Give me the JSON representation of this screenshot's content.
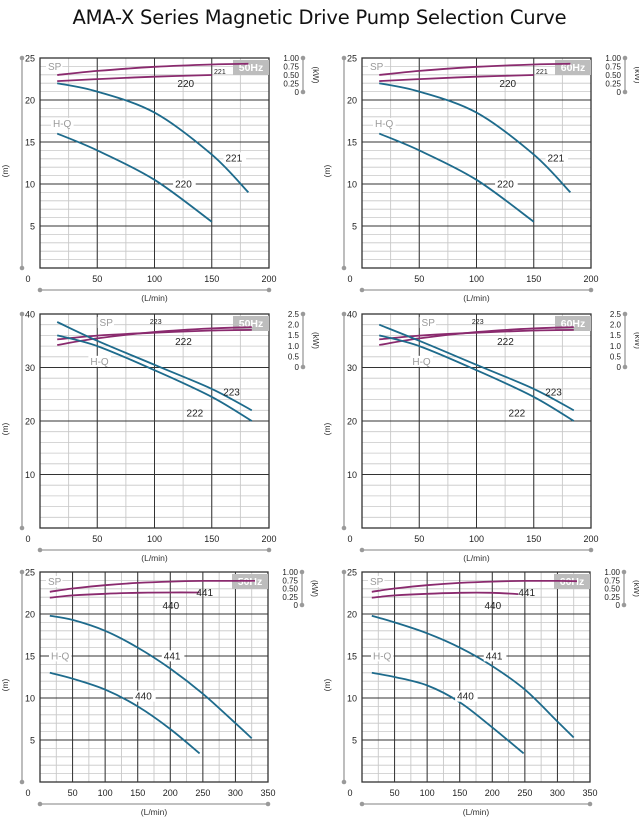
{
  "title": "AMA-X Series Magnetic Drive Pump Selection Curve",
  "colors": {
    "hq_curve": "#1e6b8c",
    "sp_curve": "#8a2a6e",
    "grid_major": "#333333",
    "grid_minor": "#c8c8c8",
    "axis_line": "#9a9a9a",
    "badge_bg": "#bdbdbd",
    "badge_text": "#ffffff",
    "label_gray": "#9a9a9a"
  },
  "chart_data": [
    {
      "type": "line",
      "id": "ama-220-221-50hz",
      "frequency_badge": "50Hz",
      "xlabel": "(L/min)",
      "ylabel": "(m)",
      "y2label": "(kW)",
      "xlim": [
        0,
        200
      ],
      "ylim": [
        0,
        25
      ],
      "y2lim": [
        0,
        1.0
      ],
      "x_ticks": [
        "0",
        "50",
        "100",
        "150",
        "200"
      ],
      "y_ticks": [
        "5",
        "10",
        "15",
        "20",
        "25"
      ],
      "y2_ticks": [
        "0",
        "0.25",
        "0.50",
        "0.75",
        "1.00"
      ],
      "grid": true,
      "group_labels": {
        "sp": "SP",
        "hq": "H-Q"
      },
      "sp_series": [
        {
          "name": "221",
          "x": [
            15,
            50,
            100,
            150,
            182
          ],
          "y": [
            0.5,
            0.62,
            0.74,
            0.81,
            0.83
          ]
        },
        {
          "name": "220",
          "x": [
            15,
            50,
            100,
            150
          ],
          "y": [
            0.32,
            0.38,
            0.45,
            0.5
          ]
        }
      ],
      "hq_series": [
        {
          "name": "221",
          "x": [
            15,
            50,
            100,
            150,
            182
          ],
          "y": [
            22,
            21,
            18.5,
            13.5,
            9
          ]
        },
        {
          "name": "220",
          "x": [
            15,
            50,
            100,
            150
          ],
          "y": [
            16,
            14,
            10.5,
            5.5
          ]
        }
      ]
    },
    {
      "type": "line",
      "id": "ama-220-221-60hz",
      "frequency_badge": "60Hz",
      "xlabel": "(L/min)",
      "ylabel": "(m)",
      "y2label": "(kW)",
      "xlim": [
        0,
        200
      ],
      "ylim": [
        0,
        25
      ],
      "y2lim": [
        0,
        1.0
      ],
      "x_ticks": [
        "0",
        "50",
        "100",
        "150",
        "200"
      ],
      "y_ticks": [
        "5",
        "10",
        "15",
        "20",
        "25"
      ],
      "y2_ticks": [
        "0",
        "0.25",
        "0.50",
        "0.75",
        "1.00"
      ],
      "grid": true,
      "group_labels": {
        "sp": "SP",
        "hq": "H-Q"
      },
      "sp_series": [
        {
          "name": "221",
          "x": [
            15,
            50,
            100,
            150,
            182
          ],
          "y": [
            0.5,
            0.62,
            0.74,
            0.81,
            0.83
          ]
        },
        {
          "name": "220",
          "x": [
            15,
            50,
            100,
            150
          ],
          "y": [
            0.32,
            0.38,
            0.45,
            0.5
          ]
        }
      ],
      "hq_series": [
        {
          "name": "221",
          "x": [
            15,
            50,
            100,
            150,
            182
          ],
          "y": [
            22,
            21,
            18.5,
            13.5,
            9
          ]
        },
        {
          "name": "220",
          "x": [
            15,
            50,
            100,
            150
          ],
          "y": [
            16,
            14,
            10.5,
            5.5
          ]
        }
      ]
    },
    {
      "type": "line",
      "id": "ama-222-223-50hz",
      "frequency_badge": "50Hz",
      "xlabel": "(L/min)",
      "ylabel": "(m)",
      "y2label": "(kW)",
      "xlim": [
        0,
        200
      ],
      "ylim": [
        0,
        40
      ],
      "y2lim": [
        0,
        2.5
      ],
      "x_ticks": [
        "0",
        "50",
        "100",
        "150",
        "200"
      ],
      "y_ticks": [
        "10",
        "20",
        "30",
        "40"
      ],
      "y2_ticks": [
        "0",
        "0.5",
        "1.0",
        "1.5",
        "2.0",
        "2.5"
      ],
      "grid": true,
      "group_labels": {
        "sp": "SP",
        "hq": "H-Q"
      },
      "sp_series": [
        {
          "name": "223",
          "x": [
            15,
            50,
            100,
            150,
            185
          ],
          "y": [
            1.04,
            1.35,
            1.65,
            1.82,
            1.88
          ]
        },
        {
          "name": "222",
          "x": [
            15,
            50,
            100,
            150,
            185
          ],
          "y": [
            1.3,
            1.48,
            1.62,
            1.72,
            1.75
          ]
        }
      ],
      "hq_series": [
        {
          "name": "223",
          "x": [
            15,
            50,
            100,
            150,
            185
          ],
          "y": [
            38.5,
            35,
            30.5,
            26,
            22
          ]
        },
        {
          "name": "222",
          "x": [
            15,
            50,
            100,
            150,
            185
          ],
          "y": [
            36,
            34,
            29.5,
            24.5,
            20
          ]
        }
      ]
    },
    {
      "type": "line",
      "id": "ama-222-223-60hz",
      "frequency_badge": "60Hz",
      "xlabel": "(L/min)",
      "ylabel": "(m)",
      "y2label": "(kW)",
      "xlim": [
        0,
        200
      ],
      "ylim": [
        0,
        40
      ],
      "y2lim": [
        0,
        2.5
      ],
      "x_ticks": [
        "0",
        "50",
        "100",
        "150",
        "200"
      ],
      "y_ticks": [
        "10",
        "20",
        "30",
        "40"
      ],
      "y2_ticks": [
        "0",
        "0.5",
        "1.0",
        "1.5",
        "2.0",
        "2.5"
      ],
      "grid": true,
      "group_labels": {
        "sp": "SP",
        "hq": "H-Q"
      },
      "sp_series": [
        {
          "name": "223",
          "x": [
            15,
            50,
            100,
            150,
            185
          ],
          "y": [
            1.04,
            1.35,
            1.65,
            1.82,
            1.88
          ]
        },
        {
          "name": "222",
          "x": [
            15,
            50,
            100,
            150,
            185
          ],
          "y": [
            1.3,
            1.48,
            1.62,
            1.72,
            1.75
          ]
        }
      ],
      "hq_series": [
        {
          "name": "223",
          "x": [
            15,
            50,
            100,
            150,
            185
          ],
          "y": [
            38,
            35,
            30.5,
            26,
            22
          ]
        },
        {
          "name": "222",
          "x": [
            15,
            50,
            100,
            150,
            185
          ],
          "y": [
            36,
            34,
            29.5,
            24.5,
            20
          ]
        }
      ]
    },
    {
      "type": "line",
      "id": "ama-440-441-50hz",
      "frequency_badge": "50Hz",
      "xlabel": "(L/min)",
      "ylabel": "(m)",
      "y2label": "(kW)",
      "xlim": [
        0,
        350
      ],
      "ylim": [
        0,
        25
      ],
      "y2lim": [
        0,
        1.0
      ],
      "x_ticks": [
        "0",
        "50",
        "100",
        "150",
        "200",
        "250",
        "300",
        "350"
      ],
      "y_ticks": [
        "5",
        "10",
        "15",
        "20",
        "25"
      ],
      "y2_ticks": [
        "0",
        "0.25",
        "0.50",
        "0.75",
        "1.00"
      ],
      "grid": true,
      "group_labels": {
        "sp": "SP",
        "hq": "H-Q"
      },
      "sp_series": [
        {
          "name": "441",
          "x": [
            15,
            50,
            100,
            150,
            200,
            250,
            300,
            330
          ],
          "y": [
            0.4,
            0.5,
            0.6,
            0.67,
            0.71,
            0.73,
            0.73,
            0.73
          ]
        },
        {
          "name": "440",
          "x": [
            15,
            50,
            100,
            150,
            200,
            245
          ],
          "y": [
            0.22,
            0.29,
            0.34,
            0.37,
            0.38,
            0.38
          ]
        }
      ],
      "hq_series": [
        {
          "name": "441",
          "x": [
            15,
            50,
            100,
            150,
            200,
            250,
            300,
            325
          ],
          "y": [
            19.8,
            19.3,
            18,
            16,
            13.5,
            10.5,
            7,
            5.2
          ]
        },
        {
          "name": "440",
          "x": [
            15,
            50,
            100,
            150,
            200,
            245
          ],
          "y": [
            13,
            12.3,
            11,
            9,
            6.3,
            3.4
          ]
        }
      ]
    },
    {
      "type": "line",
      "id": "ama-440-441-60hz",
      "frequency_badge": "60Hz",
      "xlabel": "(L/min)",
      "ylabel": "(m)",
      "y2label": "(kW)",
      "xlim": [
        0,
        350
      ],
      "ylim": [
        0,
        25
      ],
      "y2lim": [
        0,
        1.0
      ],
      "x_ticks": [
        "0",
        "50",
        "100",
        "150",
        "200",
        "250",
        "300",
        "350"
      ],
      "y_ticks": [
        "5",
        "10",
        "15",
        "20",
        "25"
      ],
      "y2_ticks": [
        "0",
        "0.25",
        "0.50",
        "0.75",
        "1.00"
      ],
      "grid": true,
      "group_labels": {
        "sp": "SP",
        "hq": "H-Q"
      },
      "sp_series": [
        {
          "name": "441",
          "x": [
            15,
            50,
            100,
            150,
            200,
            250,
            300,
            330
          ],
          "y": [
            0.4,
            0.5,
            0.6,
            0.67,
            0.71,
            0.73,
            0.73,
            0.72
          ]
        },
        {
          "name": "440",
          "x": [
            15,
            50,
            100,
            150,
            200,
            240
          ],
          "y": [
            0.22,
            0.29,
            0.34,
            0.37,
            0.37,
            0.33
          ]
        }
      ],
      "hq_series": [
        {
          "name": "441",
          "x": [
            15,
            50,
            100,
            150,
            200,
            250,
            300,
            325
          ],
          "y": [
            19.8,
            19,
            17.7,
            16,
            13.8,
            11,
            7.2,
            5.3
          ]
        },
        {
          "name": "440",
          "x": [
            15,
            50,
            100,
            150,
            200,
            248
          ],
          "y": [
            13,
            12.5,
            11.5,
            9.5,
            6.5,
            3.4
          ]
        }
      ]
    }
  ]
}
